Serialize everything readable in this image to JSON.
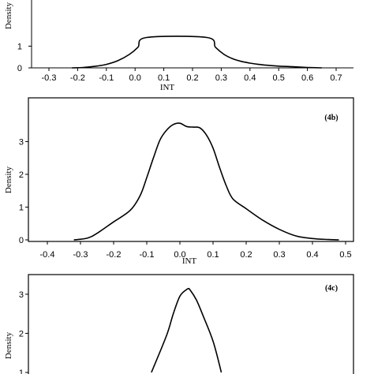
{
  "chart_data": [
    {
      "type": "line",
      "panel_label": "",
      "xlabel": "INT",
      "ylabel": "Density",
      "xlim": [
        -0.3,
        0.7
      ],
      "ylim": [
        0,
        2
      ],
      "x_ticks": [
        -0.3,
        -0.2,
        -0.1,
        0.0,
        0.1,
        0.2,
        0.3,
        0.4,
        0.5,
        0.6,
        0.7
      ],
      "x_tick_labels": [
        "-0.3",
        "-0.2",
        "-0.1",
        "0.0",
        "0.1",
        "0.2",
        "0.3",
        "0.4",
        "0.5",
        "0.6",
        "0.7"
      ],
      "y_ticks": [
        0,
        1
      ],
      "y_tick_labels": [
        "0",
        "1"
      ],
      "x": [
        -0.22,
        -0.18,
        -0.14,
        -0.1,
        -0.06,
        -0.02,
        0.01,
        0.04,
        0.25,
        0.28,
        0.31,
        0.34,
        0.37,
        0.4,
        0.43,
        0.46,
        0.5,
        0.55,
        0.6,
        0.65
      ],
      "y": [
        0.0,
        0.02,
        0.07,
        0.16,
        0.33,
        0.62,
        0.95,
        1.4,
        1.4,
        0.95,
        0.62,
        0.42,
        0.3,
        0.22,
        0.16,
        0.12,
        0.08,
        0.05,
        0.02,
        0.0
      ]
    },
    {
      "type": "line",
      "panel_label": "(4b)",
      "xlabel": "INT",
      "ylabel": "Density",
      "xlim": [
        -0.4,
        0.5
      ],
      "ylim": [
        0,
        3.6
      ],
      "x_ticks": [
        -0.4,
        -0.3,
        -0.2,
        -0.1,
        0.0,
        0.1,
        0.2,
        0.3,
        0.4,
        0.5
      ],
      "x_tick_labels": [
        "-0.4",
        "-0.3",
        "-0.2",
        "-0.1",
        "0.0",
        "0.1",
        "0.2",
        "0.3",
        "0.4",
        "0.5"
      ],
      "y_ticks": [
        0,
        1,
        2,
        3
      ],
      "y_tick_labels": [
        "0",
        "1",
        "2",
        "3"
      ],
      "x": [
        -0.32,
        -0.28,
        -0.25,
        -0.2,
        -0.15,
        -0.12,
        -0.1,
        -0.08,
        -0.06,
        -0.04,
        -0.02,
        0.0,
        0.02,
        0.04,
        0.06,
        0.08,
        0.1,
        0.12,
        0.14,
        0.16,
        0.2,
        0.25,
        0.3,
        0.35,
        0.4,
        0.45,
        0.48
      ],
      "y": [
        0.0,
        0.05,
        0.2,
        0.55,
        0.9,
        1.35,
        1.9,
        2.5,
        3.05,
        3.35,
        3.52,
        3.56,
        3.46,
        3.44,
        3.42,
        3.2,
        2.8,
        2.2,
        1.65,
        1.25,
        0.95,
        0.6,
        0.32,
        0.12,
        0.04,
        0.01,
        0.0
      ]
    },
    {
      "type": "line",
      "panel_label": "(4c)",
      "xlabel": "",
      "ylabel": "Density",
      "xlim": [
        -0.4,
        0.5
      ],
      "ylim": [
        1,
        3.2
      ],
      "x_ticks": [],
      "x_tick_labels": [],
      "y_ticks": [
        1,
        2,
        3
      ],
      "y_tick_labels": [
        "1",
        "2",
        "3"
      ],
      "x": [
        -0.086,
        -0.04,
        -0.02,
        0.0,
        0.02,
        0.025,
        0.03,
        0.05,
        0.07,
        0.1,
        0.125
      ],
      "y": [
        1.0,
        1.95,
        2.5,
        2.95,
        3.12,
        3.14,
        3.12,
        2.85,
        2.45,
        1.8,
        1.0
      ]
    }
  ]
}
